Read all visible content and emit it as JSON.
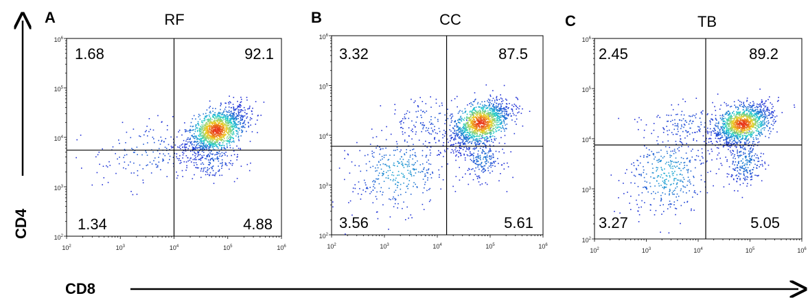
{
  "chart_data": [
    {
      "type": "scatter",
      "panel_letter": "A",
      "title": "RF",
      "xscale": "log",
      "yscale": "log",
      "xlim": [
        100,
        1000000
      ],
      "ylim": [
        100,
        1000000
      ],
      "x_ticks": [
        {
          "base": "10",
          "exp": "2"
        },
        {
          "base": "10",
          "exp": "3"
        },
        {
          "base": "10",
          "exp": "4"
        },
        {
          "base": "10",
          "exp": "5"
        },
        {
          "base": "10",
          "exp": "6"
        }
      ],
      "y_ticks": [
        {
          "base": "10",
          "exp": "2"
        },
        {
          "base": "10",
          "exp": "3"
        },
        {
          "base": "10",
          "exp": "4"
        },
        {
          "base": "10",
          "exp": "5"
        },
        {
          "base": "10",
          "exp": "6"
        }
      ],
      "gate": {
        "x": 10000,
        "y": 5500
      },
      "quadrants": {
        "top_left": "1.68",
        "top_right": "92.1",
        "bottom_left": "1.34",
        "bottom_right": "4.88"
      },
      "populations": [
        {
          "cx": 60000,
          "cy": 14000,
          "sx": 0.28,
          "sy": 0.24,
          "n": 1400,
          "rho": 0.55
        },
        {
          "cx": 50000,
          "cy": 3500,
          "sx": 0.25,
          "sy": 0.2,
          "n": 160,
          "rho": 0.0
        },
        {
          "cx": 3000,
          "cy": 5000,
          "sx": 0.5,
          "sy": 0.35,
          "n": 160,
          "rho": 0.3
        }
      ]
    },
    {
      "type": "scatter",
      "panel_letter": "B",
      "title": "CC",
      "xscale": "log",
      "yscale": "log",
      "xlim": [
        100,
        1000000
      ],
      "ylim": [
        100,
        1000000
      ],
      "x_ticks": [
        {
          "base": "10",
          "exp": "2"
        },
        {
          "base": "10",
          "exp": "3"
        },
        {
          "base": "10",
          "exp": "4"
        },
        {
          "base": "10",
          "exp": "5"
        },
        {
          "base": "10",
          "exp": "6"
        }
      ],
      "y_ticks": [
        {
          "base": "10",
          "exp": "2"
        },
        {
          "base": "10",
          "exp": "3"
        },
        {
          "base": "10",
          "exp": "4"
        },
        {
          "base": "10",
          "exp": "5"
        },
        {
          "base": "10",
          "exp": "6"
        }
      ],
      "gate": {
        "x": 15000,
        "y": 6000
      },
      "quadrants": {
        "top_left": "3.32",
        "top_right": "87.5",
        "bottom_left": "3.56",
        "bottom_right": "5.61"
      },
      "populations": [
        {
          "cx": 65000,
          "cy": 18000,
          "sx": 0.28,
          "sy": 0.24,
          "n": 1300,
          "rho": 0.55
        },
        {
          "cx": 70000,
          "cy": 3500,
          "sx": 0.18,
          "sy": 0.22,
          "n": 230,
          "rho": 0.0
        },
        {
          "cx": 1800,
          "cy": 1800,
          "sx": 0.45,
          "sy": 0.4,
          "n": 360,
          "rho": 0.2
        },
        {
          "cx": 8000,
          "cy": 20000,
          "sx": 0.45,
          "sy": 0.25,
          "n": 140,
          "rho": 0.0
        }
      ]
    },
    {
      "type": "scatter",
      "panel_letter": "C",
      "title": "TB",
      "xscale": "log",
      "yscale": "log",
      "xlim": [
        100,
        1000000
      ],
      "ylim": [
        100,
        1000000
      ],
      "x_ticks": [
        {
          "base": "10",
          "exp": "2"
        },
        {
          "base": "10",
          "exp": "3"
        },
        {
          "base": "10",
          "exp": "4"
        },
        {
          "base": "10",
          "exp": "5"
        },
        {
          "base": "10",
          "exp": "6"
        }
      ],
      "y_ticks": [
        {
          "base": "10",
          "exp": "2"
        },
        {
          "base": "10",
          "exp": "3"
        },
        {
          "base": "10",
          "exp": "4"
        },
        {
          "base": "10",
          "exp": "5"
        },
        {
          "base": "10",
          "exp": "6"
        }
      ],
      "gate": {
        "x": 14000,
        "y": 7500
      },
      "quadrants": {
        "top_left": "2.45",
        "top_right": "89.2",
        "bottom_left": "3.27",
        "bottom_right": "5.05"
      },
      "populations": [
        {
          "cx": 70000,
          "cy": 20000,
          "sx": 0.28,
          "sy": 0.2,
          "n": 1300,
          "rho": 0.45
        },
        {
          "cx": 80000,
          "cy": 3500,
          "sx": 0.18,
          "sy": 0.24,
          "n": 260,
          "rho": 0.0
        },
        {
          "cx": 2500,
          "cy": 2000,
          "sx": 0.4,
          "sy": 0.42,
          "n": 380,
          "rho": 0.2
        },
        {
          "cx": 6000,
          "cy": 20000,
          "sx": 0.4,
          "sy": 0.22,
          "n": 140,
          "rho": 0.0
        }
      ]
    }
  ],
  "axes": {
    "y_main": "CD4",
    "x_main": "CD8"
  },
  "colors": {
    "density_low": "#1f2bd6",
    "density_mid": "#1fd0d0",
    "density_high": "#f0d020",
    "density_peak": "#e83018",
    "gate_line": "#000000"
  }
}
